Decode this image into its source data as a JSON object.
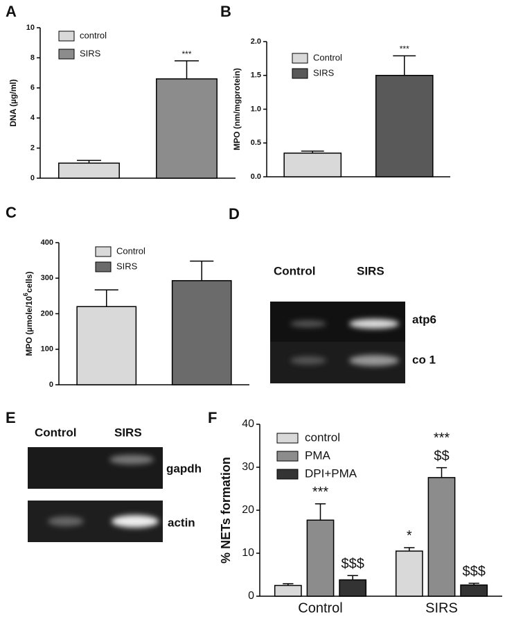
{
  "chart_data": [
    {
      "type": "bar",
      "panel": "A",
      "ylabel": "DNA (µg/ml)",
      "ylim": [
        0,
        10
      ],
      "yticks": [
        0,
        2,
        4,
        6,
        8,
        10
      ],
      "series": [
        {
          "name": "control",
          "color": "#d9d9d9",
          "values": [
            1.0
          ],
          "errors": [
            0.18
          ],
          "annotations": [
            null
          ]
        },
        {
          "name": "SIRS",
          "color": "#8c8c8c",
          "values": [
            6.6
          ],
          "errors": [
            1.2
          ],
          "annotations": [
            [
              "***"
            ]
          ]
        }
      ]
    },
    {
      "type": "bar",
      "panel": "B",
      "ylabel": "MPO (nm/mgprotein)",
      "ylim": [
        0,
        2.0
      ],
      "yticks": [
        {
          "value": 0,
          "label": "0.0"
        },
        0.5,
        {
          "value": 1,
          "label": "1.0"
        },
        1.5,
        {
          "value": 2,
          "label": "2.0"
        }
      ],
      "series": [
        {
          "name": "Control",
          "color": "#d9d9d9",
          "values": [
            0.35
          ],
          "errors": [
            0.03
          ],
          "annotations": [
            null
          ]
        },
        {
          "name": "SIRS",
          "color": "#595959",
          "values": [
            1.5
          ],
          "errors": [
            0.29
          ],
          "annotations": [
            [
              "***"
            ]
          ]
        }
      ]
    },
    {
      "type": "bar",
      "panel": "C",
      "ylabel": [
        "MPO (µmole/10",
        "6",
        "cells)"
      ],
      "ylim": [
        0,
        400
      ],
      "yticks": [
        0,
        100,
        200,
        300,
        400
      ],
      "series": [
        {
          "name": "Control",
          "color": "#d9d9d9",
          "values": [
            220
          ],
          "errors": [
            47
          ],
          "annotations": [
            null
          ]
        },
        {
          "name": "SIRS",
          "color": "#6b6b6b",
          "values": [
            293
          ],
          "errors": [
            55
          ],
          "annotations": [
            null
          ]
        }
      ]
    },
    {
      "type": "bar",
      "panel": "F",
      "ylabel": "% NETs formation",
      "ylim": [
        0,
        40
      ],
      "yticks": [
        0,
        10,
        20,
        30,
        40
      ],
      "categories": [
        "Control",
        "SIRS"
      ],
      "series": [
        {
          "name": "control",
          "color": "#d9d9d9",
          "values": [
            2.5,
            10.5
          ],
          "errors": [
            0.4,
            0.8
          ],
          "annotations": [
            null,
            [
              "*"
            ]
          ]
        },
        {
          "name": "PMA",
          "color": "#8c8c8c",
          "values": [
            17.7,
            27.6
          ],
          "errors": [
            3.8,
            2.3
          ],
          "annotations": [
            [
              "***"
            ],
            [
              "$$",
              "***"
            ]
          ]
        },
        {
          "name": "DPI+PMA",
          "color": "#333333",
          "values": [
            3.8,
            2.6
          ],
          "errors": [
            1.0,
            0.4
          ],
          "annotations": [
            [
              "$$$"
            ],
            [
              "$$$"
            ]
          ]
        }
      ]
    }
  ],
  "gels": [
    {
      "panel": "D",
      "lanes": [
        "Control",
        "SIRS"
      ],
      "bands": [
        "atp6",
        "co 1"
      ]
    },
    {
      "panel": "E",
      "lanes": [
        "Control",
        "SIRS"
      ],
      "bands": [
        "gapdh",
        "actin"
      ]
    }
  ]
}
